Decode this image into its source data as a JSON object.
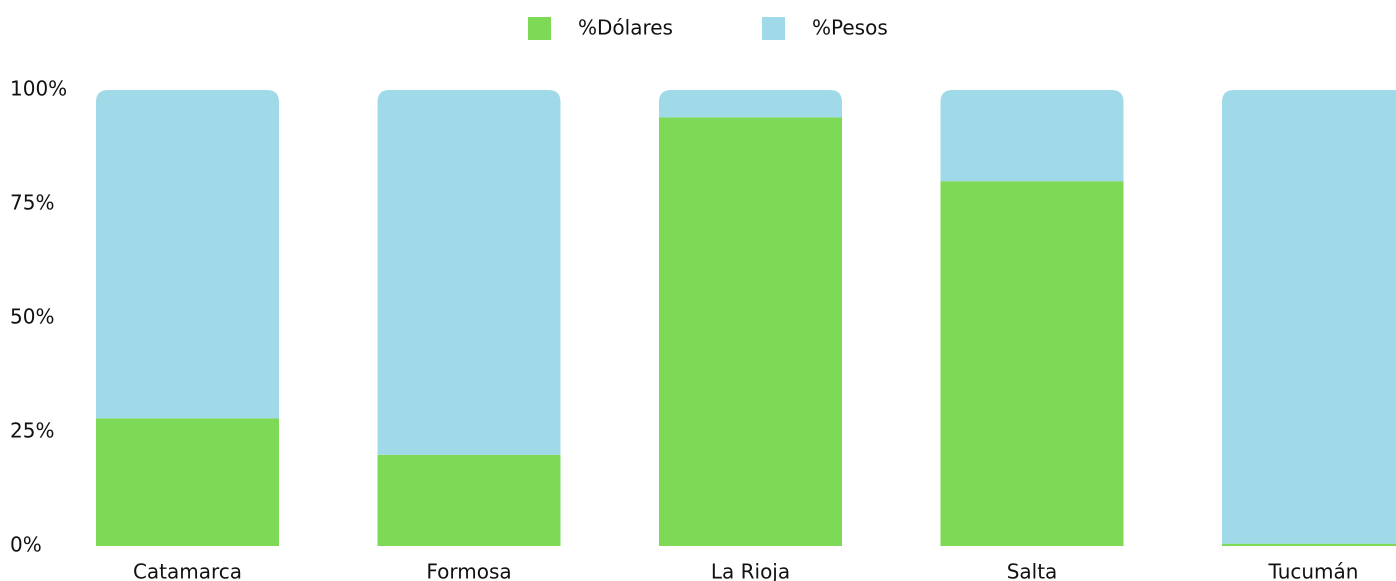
{
  "chart_data": {
    "type": "stacked_bar",
    "categories": [
      "Catamarca",
      "Formosa",
      "La Rioja",
      "Salta",
      "Tucumán"
    ],
    "series": [
      {
        "name": "%Dólares",
        "color": "#7ed957",
        "values": [
          28,
          20,
          94,
          80,
          0.5
        ]
      },
      {
        "name": "%Pesos",
        "color": "#a0d9e8",
        "values": [
          72,
          80,
          6,
          20,
          99.5
        ]
      }
    ],
    "ylim": [
      0,
      100
    ],
    "yticks": [
      {
        "value": 0,
        "label": "0%"
      },
      {
        "value": 25,
        "label": "25%"
      },
      {
        "value": 50,
        "label": "50%"
      },
      {
        "value": 75,
        "label": "75%"
      },
      {
        "value": 100,
        "label": "100%"
      }
    ],
    "legend": "top",
    "grid": false
  }
}
